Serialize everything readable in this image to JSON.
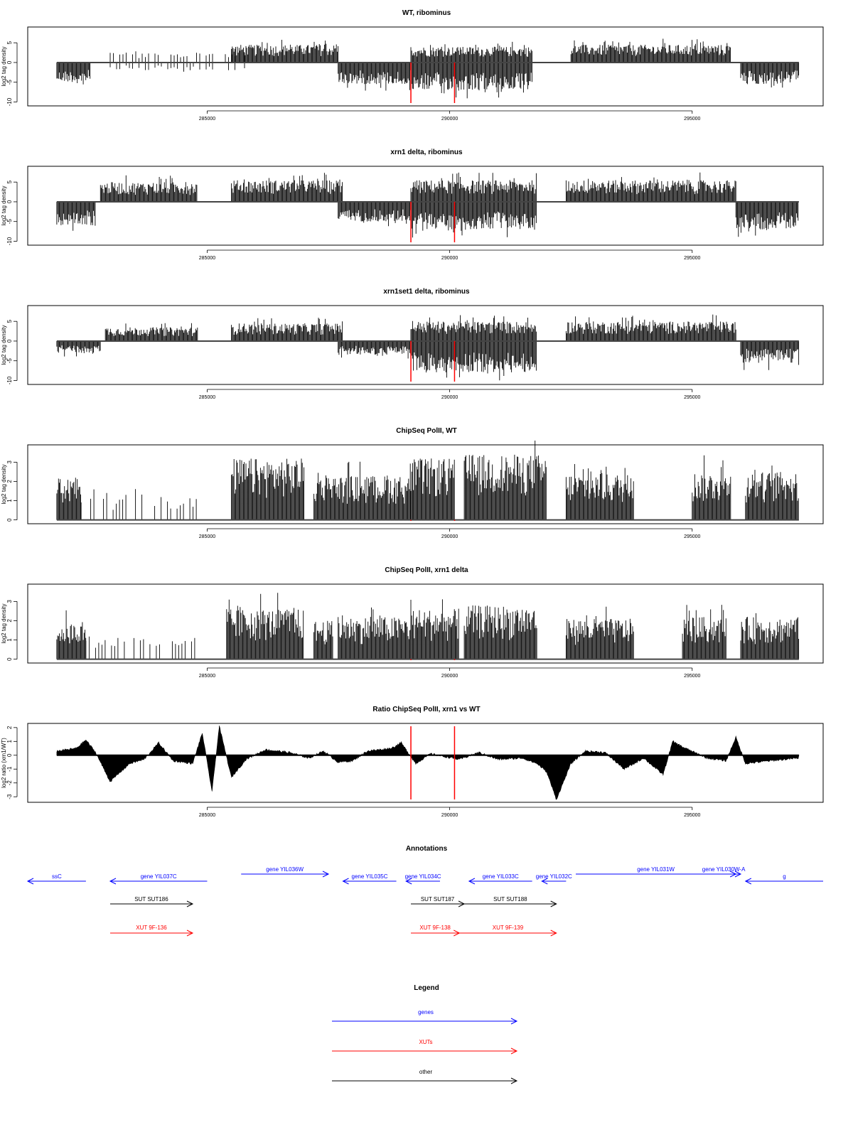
{
  "shared_x_axis": {
    "xlim": [
      281300,
      297700
    ],
    "ticks": [
      285000,
      290000,
      295000
    ],
    "tick_labels": [
      "285000",
      "290000",
      "295000"
    ]
  },
  "red_markers_x": [
    289200,
    290100
  ],
  "chart_data": [
    {
      "type": "bar",
      "title": "WT, ribominus",
      "ylabel": "log2 tag density",
      "ylim": [
        -11,
        9
      ],
      "yticks": [
        -10,
        -5,
        0,
        5
      ],
      "ytick_labels": [
        "-10",
        "-5",
        "0",
        "5"
      ],
      "segments": [
        {
          "x": [
            281900,
            282600
          ],
          "sign": -1,
          "amp": 5
        },
        {
          "x": [
            283000,
            285800
          ],
          "sign": 1,
          "amp": 2.5,
          "sparse": true
        },
        {
          "x": [
            283000,
            285800
          ],
          "sign": -1,
          "amp": 2,
          "sparse": true
        },
        {
          "x": [
            285500,
            287700
          ],
          "sign": 1,
          "amp": 4.5
        },
        {
          "x": [
            287700,
            289200
          ],
          "sign": -1,
          "amp": 5.5
        },
        {
          "x": [
            289200,
            291700
          ],
          "sign": 1,
          "amp": 4
        },
        {
          "x": [
            289200,
            291700
          ],
          "sign": -1,
          "amp": 7
        },
        {
          "x": [
            292500,
            295800
          ],
          "sign": 1,
          "amp": 4.5
        },
        {
          "x": [
            296000,
            297200
          ],
          "sign": -1,
          "amp": 5.5
        }
      ]
    },
    {
      "type": "bar",
      "title": "xrn1 delta, ribominus",
      "ylabel": "log2 tag density",
      "ylim": [
        -11,
        9
      ],
      "yticks": [
        -10,
        -5,
        0,
        5
      ],
      "ytick_labels": [
        "-10",
        "-5",
        "0",
        "5"
      ],
      "segments": [
        {
          "x": [
            281900,
            282700
          ],
          "sign": -1,
          "amp": 6
        },
        {
          "x": [
            282800,
            284800
          ],
          "sign": 1,
          "amp": 5
        },
        {
          "x": [
            285500,
            287800
          ],
          "sign": 1,
          "amp": 5.5
        },
        {
          "x": [
            287700,
            289200
          ],
          "sign": -1,
          "amp": 5
        },
        {
          "x": [
            289200,
            291800
          ],
          "sign": 1,
          "amp": 5.5
        },
        {
          "x": [
            289200,
            291800
          ],
          "sign": -1,
          "amp": 7
        },
        {
          "x": [
            292400,
            295900
          ],
          "sign": 1,
          "amp": 5.5
        },
        {
          "x": [
            295900,
            297200
          ],
          "sign": -1,
          "amp": 7
        }
      ]
    },
    {
      "type": "bar",
      "title": "xrn1set1 delta, ribominus",
      "ylabel": "log2 tag density",
      "ylim": [
        -11,
        9
      ],
      "yticks": [
        -10,
        -5,
        0,
        5
      ],
      "ytick_labels": [
        "-10",
        "-5",
        "0",
        "5"
      ],
      "segments": [
        {
          "x": [
            281900,
            282800
          ],
          "sign": -1,
          "amp": 3
        },
        {
          "x": [
            282900,
            284800
          ],
          "sign": 1,
          "amp": 3.5
        },
        {
          "x": [
            285500,
            287800
          ],
          "sign": 1,
          "amp": 4.5
        },
        {
          "x": [
            287700,
            289200
          ],
          "sign": -1,
          "amp": 3.5
        },
        {
          "x": [
            289200,
            291800
          ],
          "sign": 1,
          "amp": 5
        },
        {
          "x": [
            289200,
            291800
          ],
          "sign": -1,
          "amp": 8
        },
        {
          "x": [
            292400,
            295900
          ],
          "sign": 1,
          "amp": 5
        },
        {
          "x": [
            296000,
            297200
          ],
          "sign": -1,
          "amp": 5.5
        }
      ]
    },
    {
      "type": "bar",
      "title": "ChipSeq PolII, WT",
      "ylabel": "log2 tag density",
      "ylim": [
        -0.2,
        3.9
      ],
      "yticks": [
        0,
        1,
        2,
        3
      ],
      "ytick_labels": [
        "0",
        "1",
        "2",
        "3"
      ],
      "segments": [
        {
          "x": [
            281900,
            282400
          ],
          "sign": 1,
          "amp": 2.2
        },
        {
          "x": [
            282400,
            284800
          ],
          "sign": 1,
          "amp": 1.4,
          "sparse": true
        },
        {
          "x": [
            285500,
            287000
          ],
          "sign": 1,
          "amp": 3.2
        },
        {
          "x": [
            287200,
            289200
          ],
          "sign": 1,
          "amp": 2.3
        },
        {
          "x": [
            289200,
            290100
          ],
          "sign": 1,
          "amp": 3.2
        },
        {
          "x": [
            290300,
            292000
          ],
          "sign": 1,
          "amp": 3.4
        },
        {
          "x": [
            292400,
            293800
          ],
          "sign": 1,
          "amp": 2.4
        },
        {
          "x": [
            295000,
            295800
          ],
          "sign": 1,
          "amp": 2.5
        },
        {
          "x": [
            296100,
            297200
          ],
          "sign": 1,
          "amp": 2.5
        }
      ]
    },
    {
      "type": "bar",
      "title": "ChipSeq PolII, xrn1 delta",
      "ylabel": "log2 tag density",
      "ylim": [
        -0.2,
        3.9
      ],
      "yticks": [
        0,
        1,
        2,
        3
      ],
      "ytick_labels": [
        "0",
        "1",
        "2",
        "3"
      ],
      "segments": [
        {
          "x": [
            281900,
            282500
          ],
          "sign": 1,
          "amp": 1.9
        },
        {
          "x": [
            282500,
            284800
          ],
          "sign": 1,
          "amp": 1.2,
          "sparse": true
        },
        {
          "x": [
            285400,
            287000
          ],
          "sign": 1,
          "amp": 2.6
        },
        {
          "x": [
            287200,
            287600
          ],
          "sign": 1,
          "amp": 2
        },
        {
          "x": [
            287700,
            289200
          ],
          "sign": 1,
          "amp": 2.2
        },
        {
          "x": [
            289200,
            290200
          ],
          "sign": 1,
          "amp": 2.6
        },
        {
          "x": [
            290300,
            291800
          ],
          "sign": 1,
          "amp": 2.8
        },
        {
          "x": [
            292400,
            293800
          ],
          "sign": 1,
          "amp": 2.1
        },
        {
          "x": [
            294800,
            295700
          ],
          "sign": 1,
          "amp": 2.2
        },
        {
          "x": [
            296000,
            297200
          ],
          "sign": 1,
          "amp": 2.2
        }
      ]
    },
    {
      "type": "area",
      "title": "Ratio ChipSeq PolII, xrn1 vs WT",
      "ylabel": "log2 ratio (xrn1/WT)",
      "ylim": [
        -3.4,
        2.3
      ],
      "yticks": [
        -3,
        -2,
        -1,
        0,
        1,
        2
      ],
      "ytick_labels": [
        "-3",
        "-2",
        "-1",
        "0",
        "1",
        "2"
      ],
      "profile": [
        [
          281900,
          0.3
        ],
        [
          282300,
          0.5
        ],
        [
          282500,
          1.1
        ],
        [
          282700,
          0.2
        ],
        [
          283000,
          -1.9
        ],
        [
          283400,
          -0.6
        ],
        [
          283700,
          -0.3
        ],
        [
          284000,
          0.9
        ],
        [
          284300,
          -0.4
        ],
        [
          284700,
          -0.6
        ],
        [
          284900,
          1.6
        ],
        [
          285100,
          -2.6
        ],
        [
          285250,
          2.1
        ],
        [
          285500,
          -1.6
        ],
        [
          285800,
          -0.3
        ],
        [
          286200,
          0.4
        ],
        [
          286700,
          0.2
        ],
        [
          287100,
          -0.2
        ],
        [
          287400,
          0.3
        ],
        [
          287700,
          -0.5
        ],
        [
          288000,
          -0.4
        ],
        [
          288300,
          0.3
        ],
        [
          288800,
          0.5
        ],
        [
          289000,
          0.9
        ],
        [
          289300,
          -0.6
        ],
        [
          289600,
          0.1
        ],
        [
          290200,
          -0.3
        ],
        [
          290600,
          0.2
        ],
        [
          291000,
          -0.3
        ],
        [
          291500,
          -0.2
        ],
        [
          291800,
          -0.6
        ],
        [
          292000,
          -1.2
        ],
        [
          292200,
          -3.2
        ],
        [
          292500,
          -0.6
        ],
        [
          292800,
          0.3
        ],
        [
          293200,
          0.2
        ],
        [
          293600,
          -1.0
        ],
        [
          294000,
          -0.2
        ],
        [
          294400,
          -1.4
        ],
        [
          294600,
          1.0
        ],
        [
          294800,
          0.6
        ],
        [
          295300,
          -0.2
        ],
        [
          295700,
          -0.4
        ],
        [
          295900,
          1.3
        ],
        [
          296100,
          -0.6
        ],
        [
          296600,
          -0.4
        ],
        [
          297200,
          -0.2
        ]
      ]
    }
  ],
  "annotations": {
    "title": "Annotations",
    "genes": [
      {
        "label": "ssC",
        "x1": 281300,
        "x2": 282500,
        "dir": "left"
      },
      {
        "label": "gene YIL037C",
        "x1": 283000,
        "x2": 285000,
        "dir": "left"
      },
      {
        "label": "gene YIL036W",
        "x1": 285700,
        "x2": 287500,
        "dir": "right"
      },
      {
        "label": "gene YIL035C",
        "x1": 287800,
        "x2": 288900,
        "dir": "left"
      },
      {
        "label": "gene YIL034C",
        "x1": 289100,
        "x2": 289800,
        "dir": "left"
      },
      {
        "label": "gene YIL033C",
        "x1": 290400,
        "x2": 291700,
        "dir": "left"
      },
      {
        "label": "gene YIL032C",
        "x1": 291900,
        "x2": 292400,
        "dir": "left"
      },
      {
        "label": "gene YIL031W",
        "x1": 292600,
        "x2": 295900,
        "dir": "right"
      },
      {
        "label": "gene YIL030W-A",
        "x1": 295300,
        "x2": 296000,
        "dir": "right"
      },
      {
        "label": "g",
        "x1": 296100,
        "x2": 297700,
        "dir": "left"
      }
    ],
    "suts": [
      {
        "label": "SUT SUT186",
        "x1": 283000,
        "x2": 284700,
        "dir": "right"
      },
      {
        "label": "SUT SUT187",
        "x1": 289200,
        "x2": 290300,
        "dir": "right"
      },
      {
        "label": "SUT SUT188",
        "x1": 290300,
        "x2": 292200,
        "dir": "right"
      }
    ],
    "xuts": [
      {
        "label": "XUT 9F-136",
        "x1": 283000,
        "x2": 284700,
        "dir": "right"
      },
      {
        "label": "XUT 9F-138",
        "x1": 289200,
        "x2": 290200,
        "dir": "right"
      },
      {
        "label": "XUT 9F-139",
        "x1": 290200,
        "x2": 292200,
        "dir": "right"
      }
    ]
  },
  "legend": {
    "title": "Legend",
    "items": [
      {
        "label": "genes",
        "color": "#0000ff"
      },
      {
        "label": "XUTs",
        "color": "#ff0000"
      },
      {
        "label": "other",
        "color": "#000000"
      }
    ]
  },
  "colors": {
    "gene": "#0000ff",
    "xut": "#ff0000",
    "sut": "#000000",
    "marker": "#ff0000",
    "bars": "#000000"
  }
}
